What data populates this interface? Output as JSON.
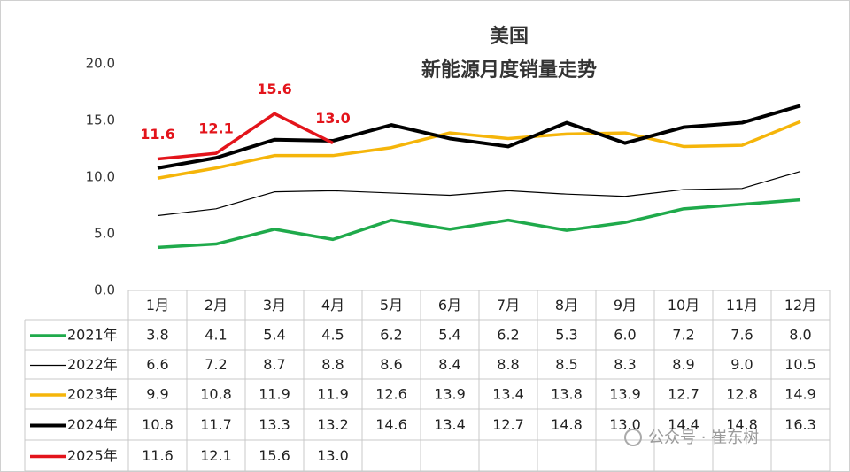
{
  "chart_data": {
    "type": "line",
    "title": "美国",
    "subtitle": "新能源月度销量走势",
    "categories": [
      "1月",
      "2月",
      "3月",
      "4月",
      "5月",
      "6月",
      "7月",
      "8月",
      "9月",
      "10月",
      "11月",
      "12月"
    ],
    "series": [
      {
        "name": "2021年",
        "color": "#1faa4b",
        "values": [
          3.8,
          4.1,
          5.4,
          4.5,
          6.2,
          5.4,
          6.2,
          5.3,
          6.0,
          7.2,
          7.6,
          8.0
        ],
        "value_labels": [
          "3.8",
          "4.1",
          "5.4",
          "4.5",
          "6.2",
          "5.4",
          "6.2",
          "5.3",
          "6.0",
          "7.2",
          "7.6",
          "8.0"
        ]
      },
      {
        "name": "2022年",
        "color": "#000000",
        "values": [
          6.6,
          7.2,
          8.7,
          8.8,
          8.6,
          8.4,
          8.8,
          8.5,
          8.3,
          8.9,
          9.0,
          10.5
        ],
        "value_labels": [
          "6.6",
          "7.2",
          "8.7",
          "8.8",
          "8.6",
          "8.4",
          "8.8",
          "8.5",
          "8.3",
          "8.9",
          "9.0",
          "10.5"
        ]
      },
      {
        "name": "2023年",
        "color": "#f5b50a",
        "values": [
          9.9,
          10.8,
          11.9,
          11.9,
          12.6,
          13.9,
          13.4,
          13.8,
          13.9,
          12.7,
          12.8,
          14.9
        ],
        "value_labels": [
          "9.9",
          "10.8",
          "11.9",
          "11.9",
          "12.6",
          "13.9",
          "13.4",
          "13.8",
          "13.9",
          "12.7",
          "12.8",
          "14.9"
        ]
      },
      {
        "name": "2024年",
        "color": "#000000",
        "values": [
          10.8,
          11.7,
          13.3,
          13.2,
          14.6,
          13.4,
          12.7,
          14.8,
          13.0,
          14.4,
          14.8,
          16.3
        ],
        "value_labels": [
          "10.8",
          "11.7",
          "13.3",
          "13.2",
          "14.6",
          "13.4",
          "12.7",
          "14.8",
          "13.0",
          "14.4",
          "14.8",
          "16.3"
        ]
      },
      {
        "name": "2025年",
        "color": "#e3141b",
        "values": [
          11.6,
          12.1,
          15.6,
          13.0,
          null,
          null,
          null,
          null,
          null,
          null,
          null,
          null
        ],
        "value_labels": [
          "11.6",
          "12.1",
          "15.6",
          "13.0",
          null,
          null,
          null,
          null,
          null,
          null,
          null,
          null
        ]
      }
    ],
    "ylim": [
      0,
      20
    ],
    "yticks": [
      {
        "value": 0,
        "label": "0.0"
      },
      {
        "value": 5,
        "label": "5.0"
      },
      {
        "value": 10,
        "label": "10.0"
      },
      {
        "value": 15,
        "label": "15.0"
      },
      {
        "value": 20,
        "label": "20.0"
      }
    ],
    "data_table": true,
    "watermark": "公众号 · 崔东树"
  }
}
